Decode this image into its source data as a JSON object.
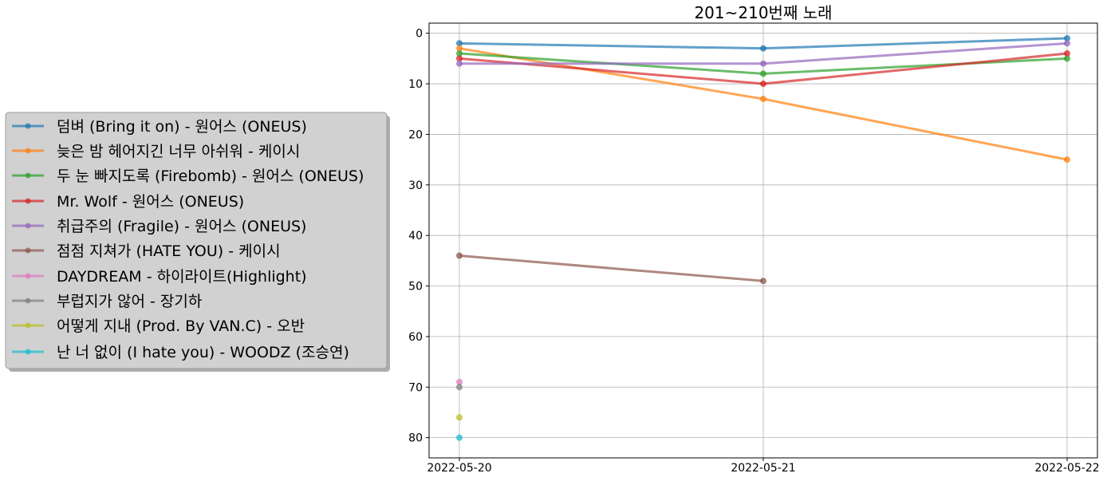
{
  "chart_data": {
    "type": "line",
    "title": "201~210번째 노래",
    "xlabel": "",
    "ylabel": "",
    "categories": [
      "2022-05-20",
      "2022-05-21",
      "2022-05-22"
    ],
    "y_ticks": [
      0,
      10,
      20,
      30,
      40,
      50,
      60,
      70,
      80
    ],
    "ylim": [
      84,
      -2
    ],
    "y_inverted": true,
    "grid": true,
    "legend_position": "left, outside plot",
    "series": [
      {
        "name": "덤벼 (Bring it on) - 원어스 (ONEUS)",
        "color": "#1f77b4",
        "values": [
          2,
          3,
          1
        ]
      },
      {
        "name": "늦은 밤 헤어지긴 너무 아쉬워 - 케이시",
        "color": "#ff7f0e",
        "values": [
          3,
          13,
          25
        ]
      },
      {
        "name": "두 눈 빠지도록 (Firebomb) - 원어스 (ONEUS)",
        "color": "#2ca02c",
        "values": [
          4,
          8,
          5
        ]
      },
      {
        "name": "Mr. Wolf - 원어스 (ONEUS)",
        "color": "#d62728",
        "values": [
          5,
          10,
          4
        ]
      },
      {
        "name": "취급주의 (Fragile) - 원어스 (ONEUS)",
        "color": "#9467bd",
        "values": [
          6,
          6,
          2
        ]
      },
      {
        "name": "점점 지쳐가 (HATE YOU) - 케이시",
        "color": "#8c564b",
        "values": [
          44,
          49,
          null
        ]
      },
      {
        "name": "DAYDREAM - 하이라이트(Highlight)",
        "color": "#e377c2",
        "values": [
          69,
          null,
          null
        ]
      },
      {
        "name": "부럽지가 않어 - 장기하",
        "color": "#7f7f7f",
        "values": [
          70,
          null,
          null
        ]
      },
      {
        "name": "어떻게 지내 (Prod. By VAN.C) - 오반",
        "color": "#bcbd22",
        "values": [
          76,
          null,
          null
        ]
      },
      {
        "name": "난 너 없이 (I hate you) - WOODZ (조승연)",
        "color": "#17becf",
        "values": [
          80,
          null,
          null
        ]
      }
    ]
  }
}
